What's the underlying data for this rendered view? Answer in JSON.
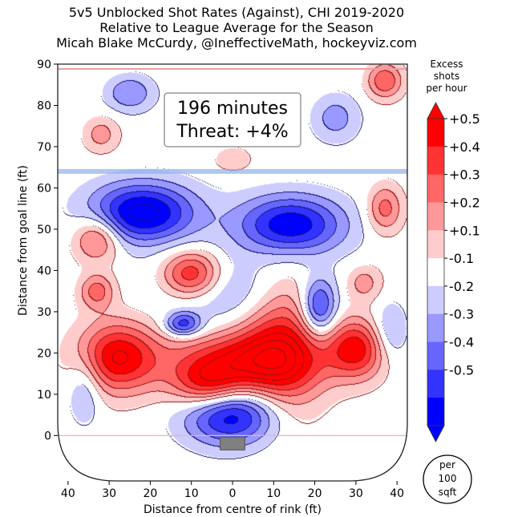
{
  "header": {
    "title_line1": "5v5 Unblocked Shot Rates (Against), CHI 2019-2020",
    "title_line2": "Relative to League Average for the Season",
    "title_line3": "Micah Blake McCurdy, @IneffectiveMath, hockeyviz.com"
  },
  "annotation": {
    "minutes": "196 minutes",
    "threat": "Threat: +4%"
  },
  "colorbar": {
    "title_line1": "Excess",
    "title_line2": "shots",
    "title_line3": "per hour",
    "labels": [
      "+0.5",
      "+0.4",
      "+0.3",
      "+0.2",
      "+0.1",
      "-0.1",
      "-0.2",
      "-0.3",
      "-0.4",
      "-0.5"
    ],
    "colors": [
      "#ff0000",
      "#ff3333",
      "#ff6666",
      "#ff9999",
      "#ffcccc",
      "#ffffff",
      "#ccccff",
      "#9999ff",
      "#6666ff",
      "#3333ff",
      "#0000ff"
    ],
    "unit_line1": "per",
    "unit_line2": "100",
    "unit_line3": "sqft"
  },
  "chart_data": {
    "type": "heatmap",
    "title": "5v5 Unblocked Shot Rates (Against), CHI 2019-2020",
    "subtitle": "Relative to League Average for the Season",
    "xlabel": "Distance from centre of rink (ft)",
    "ylabel": "Distance from goal line (ft)",
    "xlim": [
      42.5,
      -42.5
    ],
    "ylim": [
      -11,
      90
    ],
    "x_ticks": [
      "40",
      "30",
      "20",
      "10",
      "0",
      "10",
      "20",
      "30",
      "40"
    ],
    "x_tick_values": [
      40,
      30,
      20,
      10,
      0,
      -10,
      -20,
      -30,
      -40
    ],
    "y_ticks": [
      "0",
      "10",
      "20",
      "30",
      "40",
      "50",
      "60",
      "70",
      "80",
      "90"
    ],
    "y_tick_values": [
      0,
      10,
      20,
      30,
      40,
      50,
      60,
      70,
      80,
      90
    ],
    "colorbar_range": [
      -0.5,
      0.5
    ],
    "blobs": [
      {
        "x": 0,
        "y": 5,
        "value": -0.55,
        "sx": 8,
        "sy": 5
      },
      {
        "x": -2,
        "y": 18,
        "value": 0.5,
        "sx": 12,
        "sy": 5
      },
      {
        "x": -12,
        "y": 22,
        "value": 0.45,
        "sx": 7,
        "sy": 12
      },
      {
        "x": 6,
        "y": 12,
        "value": 0.4,
        "sx": 6,
        "sy": 4
      },
      {
        "x": 28,
        "y": 19,
        "value": 0.55,
        "sx": 7,
        "sy": 6
      },
      {
        "x": -30,
        "y": 21,
        "value": 0.5,
        "sx": 5,
        "sy": 5
      },
      {
        "x": 10,
        "y": 39,
        "value": 0.5,
        "sx": 5,
        "sy": 4
      },
      {
        "x": 33,
        "y": 48,
        "value": 0.35,
        "sx": 4,
        "sy": 4
      },
      {
        "x": 33,
        "y": 35,
        "value": 0.3,
        "sx": 3,
        "sy": 3
      },
      {
        "x": 22,
        "y": 54,
        "value": -0.6,
        "sx": 9,
        "sy": 5
      },
      {
        "x": -14,
        "y": 51,
        "value": -0.55,
        "sx": 9,
        "sy": 5
      },
      {
        "x": -21,
        "y": 31,
        "value": -0.45,
        "sx": 3,
        "sy": 5
      },
      {
        "x": 12,
        "y": 27,
        "value": -0.4,
        "sx": 3,
        "sy": 2
      },
      {
        "x": 0,
        "y": 35,
        "value": -0.2,
        "sx": 12,
        "sy": 6
      },
      {
        "x": 25,
        "y": 83,
        "value": -0.25,
        "sx": 4,
        "sy": 3
      },
      {
        "x": -25,
        "y": 77,
        "value": -0.2,
        "sx": 4,
        "sy": 4
      },
      {
        "x": -37,
        "y": 55,
        "value": 0.3,
        "sx": 3,
        "sy": 4
      },
      {
        "x": -37,
        "y": 86,
        "value": 0.35,
        "sx": 3,
        "sy": 3
      },
      {
        "x": -32,
        "y": 37,
        "value": 0.2,
        "sx": 3,
        "sy": 3
      },
      {
        "x": 32,
        "y": 73,
        "value": 0.2,
        "sx": 3,
        "sy": 3
      },
      {
        "x": 0,
        "y": 67,
        "value": 0.15,
        "sx": 3,
        "sy": 2
      },
      {
        "x": 36,
        "y": 12,
        "value": -0.2,
        "sx": 3,
        "sy": 6
      },
      {
        "x": -38,
        "y": 25,
        "value": -0.2,
        "sx": 3,
        "sy": 5
      }
    ],
    "blue_line_y": 64,
    "grid": false,
    "legend": "colorbar-right"
  }
}
